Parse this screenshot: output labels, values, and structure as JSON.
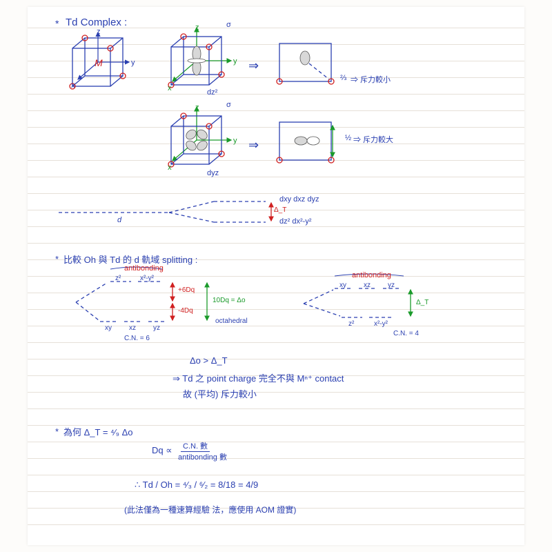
{
  "title": "Td Complex :",
  "cube1": {
    "M": "M",
    "x": "x",
    "y": "y",
    "z": "z"
  },
  "cube2": {
    "label": "dz²",
    "x": "x",
    "y": "y",
    "z": "z",
    "sym": "σ"
  },
  "cube3": {
    "label": "dyz",
    "x": "x",
    "y": "y",
    "z": "z",
    "sym": "σ"
  },
  "side1": {
    "frac": "⅔",
    "note": "⇒ 斥力較小"
  },
  "side2": {
    "frac": "½",
    "note": "⇒ 斥力較大"
  },
  "split_d": {
    "base": "d",
    "upper": "dxy dxz dyz",
    "lower": "dz² dx²-y²",
    "delta": "Δ_T"
  },
  "sec2_title": "比較 Oh 與 Td 的 d 軌域 splitting :",
  "oh": {
    "anti": "antibonding",
    "top1": "z²",
    "top2": "x²-y²",
    "bot1": "xy",
    "bot2": "xz",
    "bot3": "yz",
    "p6": "+6Dq",
    "m4": "-4Dq",
    "ten": "10Dq = Δo",
    "name": "octahedral",
    "cn": "C.N. = 6"
  },
  "td": {
    "anti": "antibonding",
    "top1": "xy",
    "top2": "xz",
    "top3": "yz",
    "bot1": "z²",
    "bot2": "x²-y²",
    "delta": "Δ_T",
    "cn": "C.N. = 4"
  },
  "concl": {
    "l1": "Δo > Δ_T",
    "l2": "⇒ Td 之 point charge 完全不與 Mⁿ⁺ contact",
    "l3": "故 (平均) 斥力較小"
  },
  "sec3_title": "為何 Δ_T = ⁴⁄₉ Δo",
  "formula": {
    "l1": "Dq ∝",
    "frac_top": "C.N. 數",
    "frac_bot": "antibonding 數",
    "eq": "∴   Td / Oh  =  ⁴⁄₃ / ⁶⁄₂  =  8/18  =  4/9",
    "note": "(此法僅為一種速算經驗  法，應使用 AOM 證實)"
  },
  "colors": {
    "blue": "#2a3fb0",
    "red": "#d02020",
    "green": "#1a9a2a",
    "paper": "#ffffff",
    "rule": "#e6e0d8"
  }
}
